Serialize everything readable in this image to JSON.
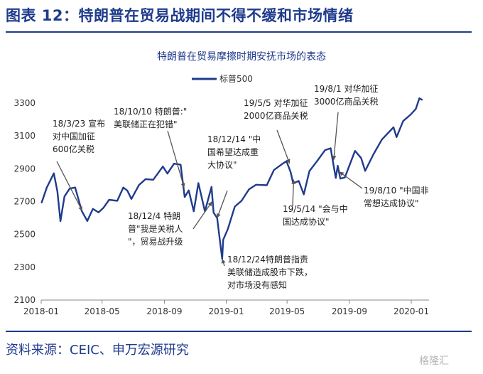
{
  "figure": {
    "title": "图表 12：特朗普在贸易战期间不得不缓和市场情绪",
    "source": "资料来源：CEIC、申万宏源研究",
    "watermark": "格隆汇"
  },
  "colors": {
    "line": "#1f3b8c",
    "accent": "#1f3b8c",
    "annotation_text": "#222222",
    "axis_text": "#333333"
  },
  "chart_data": {
    "type": "line",
    "title": "特朗普在贸易摩擦时期安抚市场的表态",
    "legend": {
      "position": "top-center",
      "entries": [
        "标普500"
      ]
    },
    "xlabel": "",
    "ylabel": "",
    "ylim": [
      2100,
      3400
    ],
    "yticks": [
      2100,
      2300,
      2500,
      2700,
      2900,
      3100,
      3300
    ],
    "xlim": [
      "2018-01-01",
      "2020-02-05"
    ],
    "xticks": [
      "2018-01",
      "2018-05",
      "2018-09",
      "2019-01",
      "2019-05",
      "2019-09",
      "2020-01"
    ],
    "grid": false,
    "series": [
      {
        "name": "标普500",
        "points": [
          [
            "2018-01-02",
            2695
          ],
          [
            "2018-01-12",
            2786
          ],
          [
            "2018-01-26",
            2872
          ],
          [
            "2018-02-02",
            2762
          ],
          [
            "2018-02-08",
            2581
          ],
          [
            "2018-02-16",
            2732
          ],
          [
            "2018-02-26",
            2779
          ],
          [
            "2018-03-09",
            2786
          ],
          [
            "2018-03-22",
            2643
          ],
          [
            "2018-04-02",
            2582
          ],
          [
            "2018-04-13",
            2656
          ],
          [
            "2018-04-24",
            2634
          ],
          [
            "2018-05-04",
            2663
          ],
          [
            "2018-05-15",
            2711
          ],
          [
            "2018-05-31",
            2705
          ],
          [
            "2018-06-12",
            2786
          ],
          [
            "2018-06-20",
            2767
          ],
          [
            "2018-06-28",
            2716
          ],
          [
            "2018-07-13",
            2801
          ],
          [
            "2018-07-26",
            2837
          ],
          [
            "2018-08-10",
            2833
          ],
          [
            "2018-08-29",
            2914
          ],
          [
            "2018-09-07",
            2871
          ],
          [
            "2018-09-20",
            2931
          ],
          [
            "2018-10-03",
            2925
          ],
          [
            "2018-10-11",
            2728
          ],
          [
            "2018-10-19",
            2768
          ],
          [
            "2018-10-29",
            2641
          ],
          [
            "2018-11-07",
            2813
          ],
          [
            "2018-11-20",
            2641
          ],
          [
            "2018-12-03",
            2790
          ],
          [
            "2018-12-07",
            2633
          ],
          [
            "2018-12-14",
            2600
          ],
          [
            "2018-12-24",
            2351
          ],
          [
            "2018-12-26",
            2467
          ],
          [
            "2019-01-04",
            2532
          ],
          [
            "2019-01-18",
            2670
          ],
          [
            "2019-01-31",
            2704
          ],
          [
            "2019-02-15",
            2775
          ],
          [
            "2019-03-01",
            2803
          ],
          [
            "2019-03-22",
            2800
          ],
          [
            "2019-04-05",
            2892
          ],
          [
            "2019-04-23",
            2933
          ],
          [
            "2019-04-30",
            2946
          ],
          [
            "2019-05-08",
            2879
          ],
          [
            "2019-05-13",
            2812
          ],
          [
            "2019-05-24",
            2826
          ],
          [
            "2019-06-03",
            2744
          ],
          [
            "2019-06-14",
            2886
          ],
          [
            "2019-06-28",
            2942
          ],
          [
            "2019-07-15",
            3014
          ],
          [
            "2019-07-26",
            3025
          ],
          [
            "2019-08-05",
            2844
          ],
          [
            "2019-08-09",
            2918
          ],
          [
            "2019-08-14",
            2840
          ],
          [
            "2019-08-23",
            2847
          ],
          [
            "2019-09-12",
            3009
          ],
          [
            "2019-09-24",
            2966
          ],
          [
            "2019-10-02",
            2887
          ],
          [
            "2019-10-18",
            2986
          ],
          [
            "2019-11-04",
            3078
          ],
          [
            "2019-11-27",
            3153
          ],
          [
            "2019-12-03",
            3093
          ],
          [
            "2019-12-16",
            3191
          ],
          [
            "2019-12-31",
            3231
          ],
          [
            "2020-01-10",
            3265
          ],
          [
            "2020-01-17",
            3330
          ],
          [
            "2020-01-22",
            3321
          ]
        ]
      }
    ],
    "annotations": [
      {
        "id": "a1",
        "lines": [
          "18/3/23 宣布",
          "对中国加征",
          "600亿关税"
        ],
        "date": "2018-03-23",
        "value": 2643
      },
      {
        "id": "a2",
        "lines": [
          "18/10/10 特朗普:\"",
          "美联储正在犯错\""
        ],
        "date": "2018-10-10",
        "value": 2785
      },
      {
        "id": "a3",
        "lines": [
          "18/12/14 \"中",
          "国希望达成重",
          "大协议\""
        ],
        "date": "2018-12-14",
        "value": 2600
      },
      {
        "id": "a4",
        "lines": [
          "18/12/4 特朗",
          "普\"我是关税人",
          "\"，贸易战升级"
        ],
        "date": "2018-12-04",
        "value": 2700
      },
      {
        "id": "a5",
        "lines": [
          "18/12/24特朗普指责",
          "美联储造成股市下跌，",
          "对市场没有感知"
        ],
        "date": "2018-12-24",
        "value": 2351
      },
      {
        "id": "a6",
        "lines": [
          "19/5/5 对华加征",
          "2000亿商品关税"
        ],
        "date": "2019-05-06",
        "value": 2932
      },
      {
        "id": "a7",
        "lines": [
          "19/5/14 \"会与中",
          "国达成协议\""
        ],
        "date": "2019-05-14",
        "value": 2834
      },
      {
        "id": "a8",
        "lines": [
          "19/8/1 对华加征",
          "3000亿商品关税"
        ],
        "date": "2019-08-01",
        "value": 2953
      },
      {
        "id": "a9",
        "lines": [
          "19/8/10 \"中国非",
          "常想达成协议\""
        ],
        "date": "2019-08-12",
        "value": 2882
      }
    ]
  }
}
